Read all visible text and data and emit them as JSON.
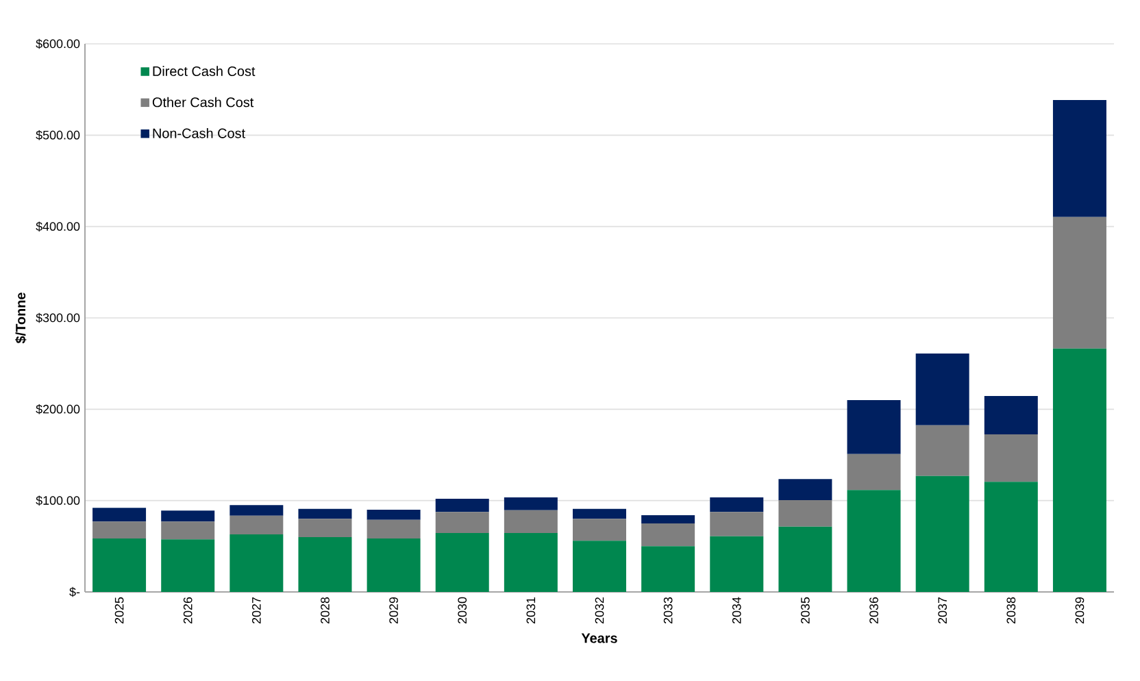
{
  "chart_data": {
    "type": "bar",
    "stacked": true,
    "xlabel": "Years",
    "ylabel": "$/Tonne",
    "categories": [
      "2025",
      "2026",
      "2027",
      "2028",
      "2029",
      "2030",
      "2031",
      "2032",
      "2033",
      "2034",
      "2035",
      "2036",
      "2037",
      "2038",
      "2039"
    ],
    "series": [
      {
        "name": "Direct Cash Cost",
        "color": "#00874f",
        "values": [
          58.5,
          57.5,
          63,
          60,
          58.5,
          64.5,
          64.5,
          56,
          50,
          61,
          71.5,
          111.5,
          127,
          120.5,
          266.5
        ]
      },
      {
        "name": "Other Cash Cost",
        "color": "#7f7f7f",
        "values": [
          18.5,
          19.5,
          20.5,
          20,
          20.5,
          23,
          25,
          24,
          25,
          26.5,
          29,
          39.5,
          55.5,
          52,
          144
        ]
      },
      {
        "name": "Non-Cash Cost",
        "color": "#002060",
        "values": [
          15,
          12,
          11.5,
          11,
          11,
          14.5,
          14,
          11,
          9,
          16,
          23,
          59,
          78.5,
          42,
          128
        ]
      }
    ],
    "ylim": [
      0,
      600
    ],
    "yticks": [
      {
        "value": 0,
        "label": "$-"
      },
      {
        "value": 100,
        "label": "$100.00"
      },
      {
        "value": 200,
        "label": "$200.00"
      },
      {
        "value": 300,
        "label": "$300.00"
      },
      {
        "value": 400,
        "label": "$400.00"
      },
      {
        "value": 500,
        "label": "$500.00"
      },
      {
        "value": 600,
        "label": "$600.00"
      }
    ],
    "grid": "y",
    "legend": "top left"
  }
}
